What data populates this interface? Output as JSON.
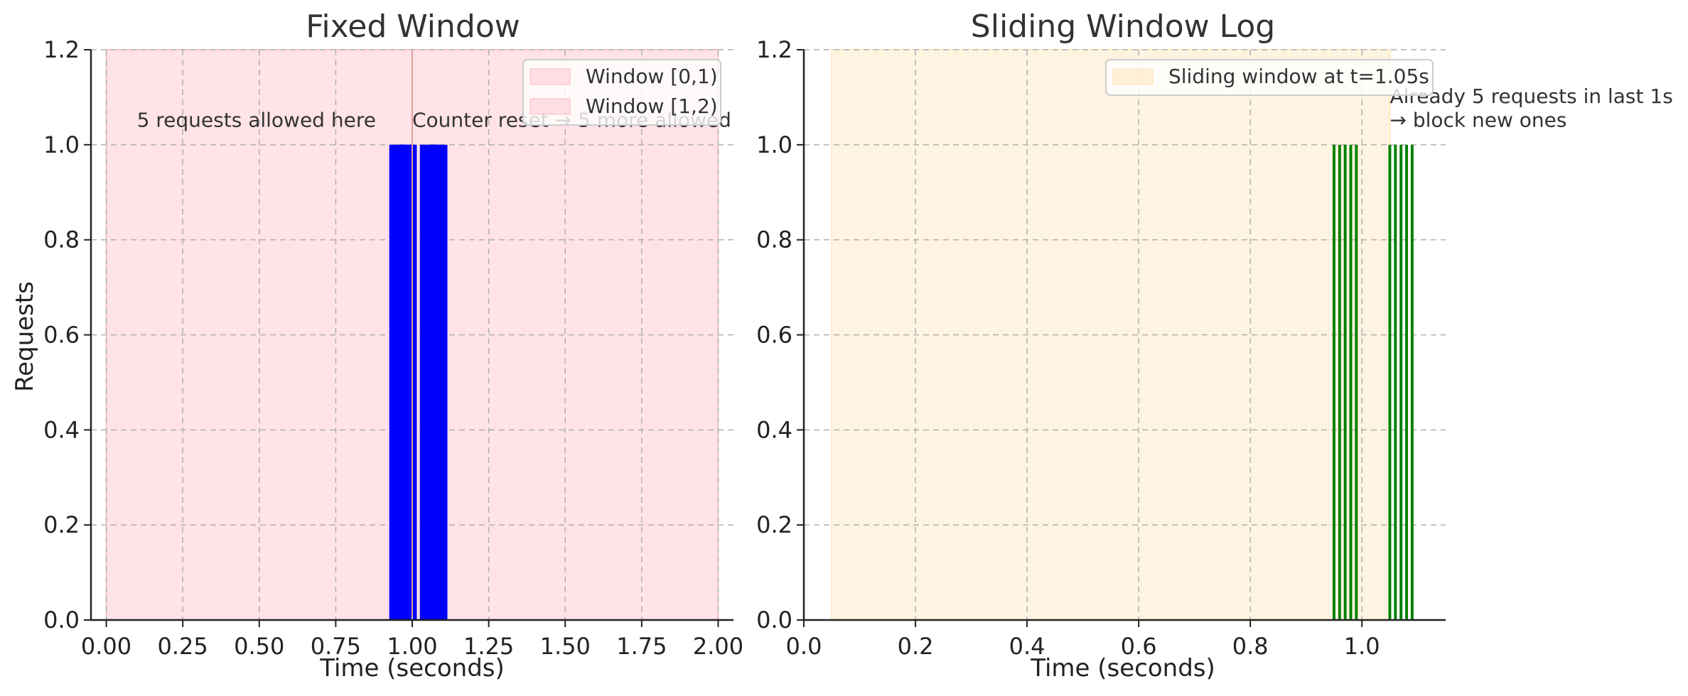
{
  "chart_data": [
    {
      "type": "bar",
      "title": "Fixed Window",
      "xlabel": "Time (seconds)",
      "ylabel": "Requests",
      "xlim": [
        -0.05,
        2.05
      ],
      "ylim": [
        0,
        1.2
      ],
      "xticks": [
        "0.00",
        "0.25",
        "0.50",
        "0.75",
        "1.00",
        "1.25",
        "1.50",
        "1.75",
        "2.00"
      ],
      "xtick_values": [
        0,
        0.25,
        0.5,
        0.75,
        1.0,
        1.25,
        1.5,
        1.75,
        2.0
      ],
      "yticks": [
        "0.0",
        "0.2",
        "0.4",
        "0.6",
        "0.8",
        "1.0",
        "1.2"
      ],
      "ytick_values": [
        0,
        0.2,
        0.4,
        0.6,
        0.8,
        1.0,
        1.2
      ],
      "grid": true,
      "bar_color": "#0000ff",
      "bar_width": 0.05,
      "bars": [
        {
          "x": 0.95,
          "value": 1
        },
        {
          "x": 0.96,
          "value": 1
        },
        {
          "x": 0.97,
          "value": 1
        },
        {
          "x": 0.98,
          "value": 1
        },
        {
          "x": 0.99,
          "value": 1
        },
        {
          "x": 1.05,
          "value": 1
        },
        {
          "x": 1.06,
          "value": 1
        },
        {
          "x": 1.07,
          "value": 1
        },
        {
          "x": 1.08,
          "value": 1
        },
        {
          "x": 1.09,
          "value": 1
        }
      ],
      "spans": [
        {
          "label": "Window [0,1)",
          "x0": 0,
          "x1": 1,
          "color": "#ffb6c1"
        },
        {
          "label": "Window [1,2)",
          "x0": 1,
          "x1": 2,
          "color": "#ffb6c1"
        }
      ],
      "annotations": [
        {
          "text": "5 requests allowed here",
          "x": 0.1,
          "y": 1.05
        },
        {
          "text": "Counter reset → 5 more allowed",
          "x": 1.0,
          "y": 1.05
        }
      ],
      "legend_placement": "top-right"
    },
    {
      "type": "bar",
      "title": "Sliding Window Log",
      "xlabel": "Time (seconds)",
      "xlim": [
        0,
        1.15
      ],
      "ylim": [
        0,
        1.2
      ],
      "xticks": [
        "0.0",
        "0.2",
        "0.4",
        "0.6",
        "0.8",
        "1.0"
      ],
      "xtick_values": [
        0,
        0.2,
        0.4,
        0.6,
        0.8,
        1.0
      ],
      "yticks": [
        "0.0",
        "0.2",
        "0.4",
        "0.6",
        "0.8",
        "1.0",
        "1.2"
      ],
      "ytick_values": [
        0,
        0.2,
        0.4,
        0.6,
        0.8,
        1.0,
        1.2
      ],
      "grid": true,
      "bar_color": "#008000",
      "bar_width": 0.005,
      "bars": [
        {
          "x": 0.95,
          "value": 1
        },
        {
          "x": 0.96,
          "value": 1
        },
        {
          "x": 0.97,
          "value": 1
        },
        {
          "x": 0.98,
          "value": 1
        },
        {
          "x": 0.99,
          "value": 1
        },
        {
          "x": 1.05,
          "value": 1
        },
        {
          "x": 1.06,
          "value": 1
        },
        {
          "x": 1.07,
          "value": 1
        },
        {
          "x": 1.08,
          "value": 1
        },
        {
          "x": 1.09,
          "value": 1
        }
      ],
      "spans": [
        {
          "label": "Sliding window at t=1.05s",
          "x0": 0.05,
          "x1": 1.05,
          "color": "#ffe4b5"
        }
      ],
      "annotations": [
        {
          "text": "Already 5 requests in last 1s",
          "x": 1.05,
          "y": 1.1
        },
        {
          "text": "→ block new ones",
          "x": 1.05,
          "y": 1.05
        }
      ],
      "legend_placement": "top-right"
    }
  ]
}
